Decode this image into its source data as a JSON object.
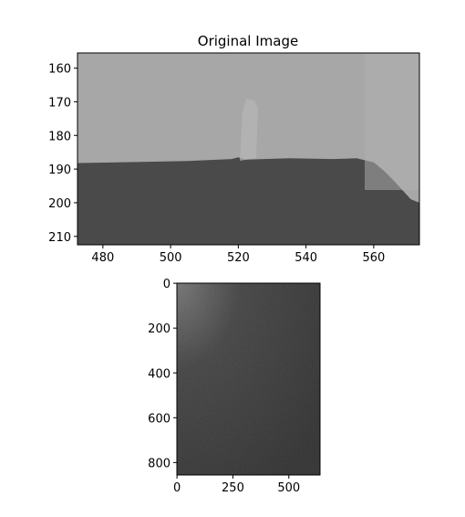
{
  "chart_data": [
    {
      "type": "heatmap",
      "title": "Original Image",
      "xlabel": "",
      "ylabel": "",
      "colormap": "gray",
      "xlim": [
        472.5,
        573.5
      ],
      "ylim": [
        212.5,
        155.5
      ],
      "x_ticks": [
        480,
        500,
        520,
        540,
        560
      ],
      "y_ticks": [
        160,
        170,
        180,
        190,
        200,
        210
      ],
      "colors": {
        "sky": "#a7a7a7",
        "sky_light": "#b2b2b2",
        "ground": "#4a4a4a",
        "ground_dark": "#3e3e3e"
      }
    },
    {
      "type": "heatmap",
      "title": "",
      "xlabel": "",
      "ylabel": "",
      "colormap": "gray",
      "xlim": [
        -0.5,
        639.5
      ],
      "ylim": [
        855.5,
        -0.5
      ],
      "x_ticks": [
        0,
        250,
        500
      ],
      "y_ticks": [
        0,
        200,
        400,
        600,
        800
      ],
      "colors": {
        "top_left": "#6a6a6a",
        "center": "#333333",
        "bottom_right": "#1e1e1e"
      }
    }
  ]
}
